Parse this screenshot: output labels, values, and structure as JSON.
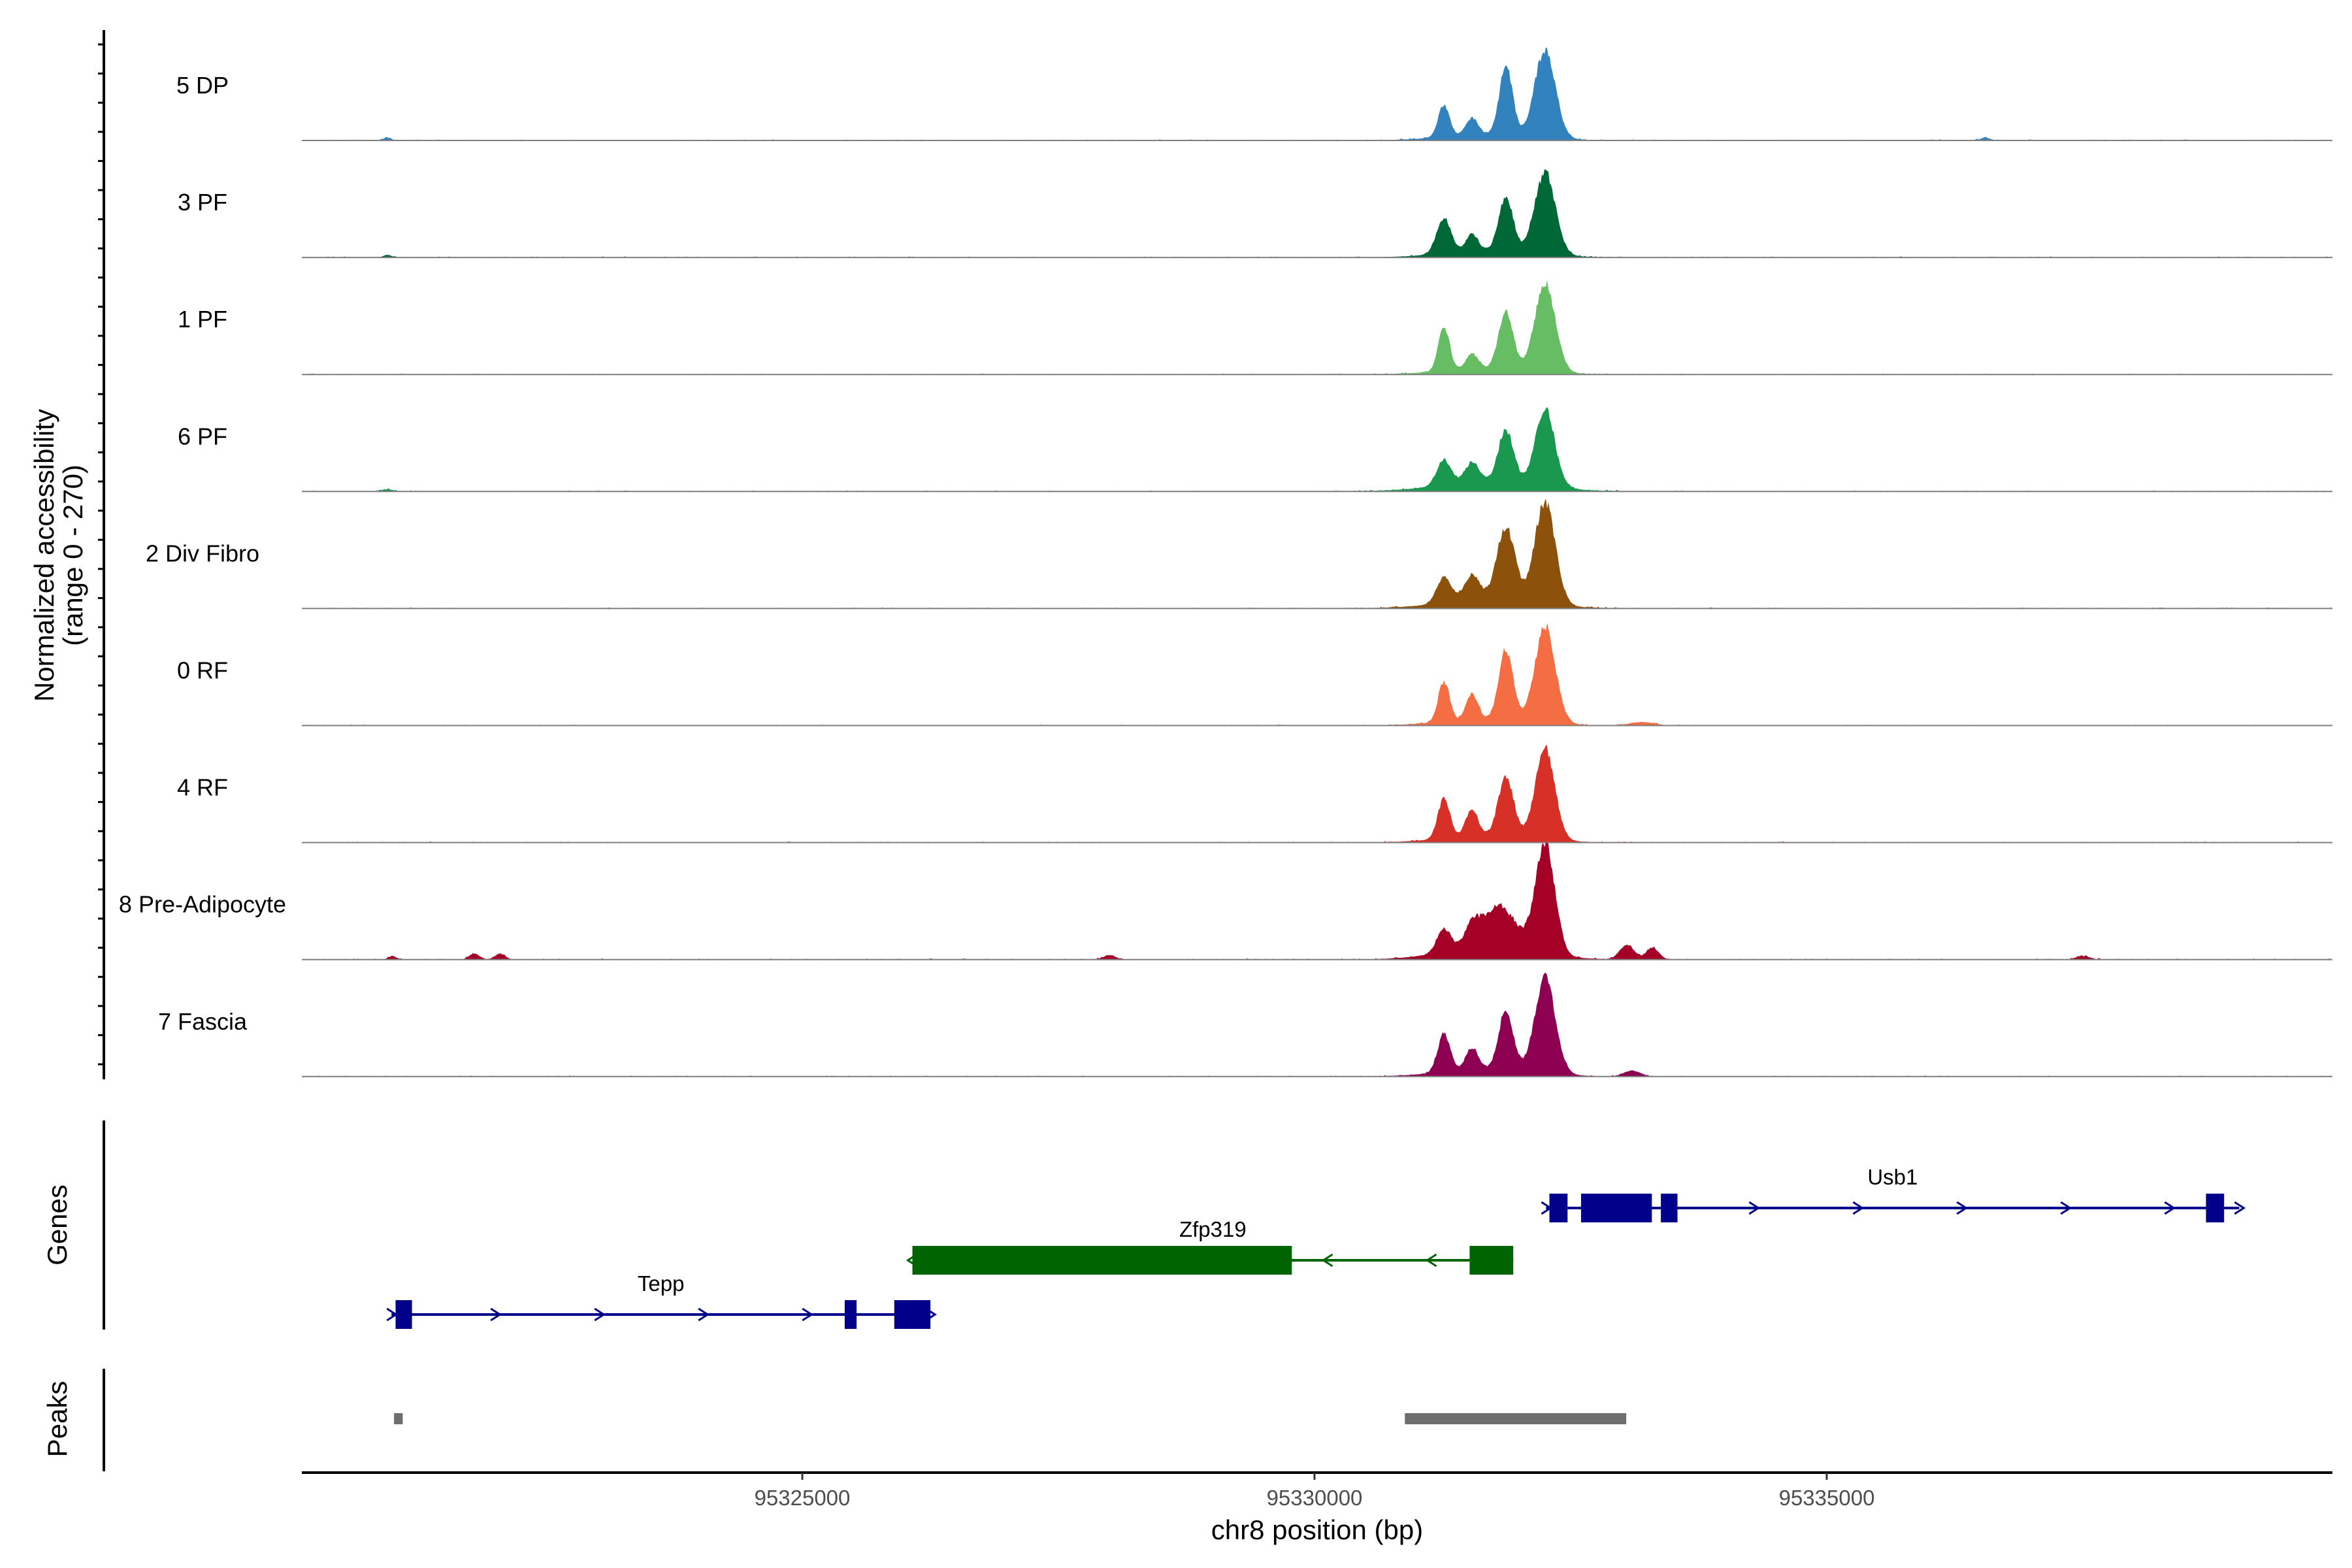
{
  "chart_data": {
    "type": "area",
    "title": "",
    "ylabel_line1": "Normalized accessibility",
    "ylabel_line2": "(range 0 - 270)",
    "ylim": [
      0,
      270
    ],
    "xlabel": "chr8 position (bp)",
    "xlim": [
      95320115,
      95339936
    ],
    "xticks": [
      95325000,
      95330000,
      95335000
    ],
    "xtick_labels": [
      "95325000",
      "95330000",
      "95335000"
    ],
    "tracks": [
      {
        "name": "5 DP",
        "color": "#3182bd",
        "peaks": [
          [
            95331263,
            75,
            55
          ],
          [
            95331537,
            40,
            60
          ],
          [
            95331869,
            160,
            65
          ],
          [
            95332251,
            205,
            100
          ],
          [
            95331716,
            14,
            450
          ],
          [
            95320950,
            6,
            40
          ],
          [
            95336550,
            6,
            50
          ]
        ]
      },
      {
        "name": "3 PF",
        "color": "#006837",
        "peaks": [
          [
            95331263,
            82,
            70
          ],
          [
            95331537,
            40,
            60
          ],
          [
            95331869,
            128,
            70
          ],
          [
            95332251,
            192,
            100
          ],
          [
            95331716,
            16,
            450
          ],
          [
            95320950,
            6,
            40
          ]
        ]
      },
      {
        "name": "1 PF",
        "color": "#66bd63",
        "peaks": [
          [
            95331263,
            104,
            55
          ],
          [
            95331537,
            36,
            60
          ],
          [
            95331869,
            136,
            70
          ],
          [
            95332251,
            205,
            100
          ],
          [
            95331716,
            14,
            450
          ]
        ]
      },
      {
        "name": "6 PF",
        "color": "#1a9850",
        "peaks": [
          [
            95331263,
            60,
            70
          ],
          [
            95331537,
            48,
            70
          ],
          [
            95331869,
            124,
            75
          ],
          [
            95332251,
            180,
            95
          ],
          [
            95331716,
            22,
            500
          ],
          [
            95320950,
            5,
            60
          ]
        ]
      },
      {
        "name": "2 Div Fibro",
        "color": "#8c510a",
        "peaks": [
          [
            95331263,
            62,
            70
          ],
          [
            95331537,
            60,
            80
          ],
          [
            95331869,
            172,
            90
          ],
          [
            95332251,
            240,
            100
          ],
          [
            95331716,
            18,
            500
          ]
        ]
      },
      {
        "name": "0 RF",
        "color": "#f46d43",
        "peaks": [
          [
            95331263,
            95,
            55
          ],
          [
            95331537,
            60,
            60
          ],
          [
            95331869,
            164,
            70
          ],
          [
            95332251,
            222,
            100
          ],
          [
            95331716,
            14,
            450
          ],
          [
            95333200,
            8,
            120
          ]
        ]
      },
      {
        "name": "4 RF",
        "color": "#d73027",
        "peaks": [
          [
            95331263,
            92,
            60
          ],
          [
            95331537,
            62,
            60
          ],
          [
            95331869,
            140,
            75
          ],
          [
            95332251,
            212,
            95
          ],
          [
            95331716,
            16,
            450
          ]
        ]
      },
      {
        "name": "8 Pre-Adipocyte",
        "color": "#a50026",
        "peaks": [
          [
            95331263,
            55,
            70
          ],
          [
            95331537,
            45,
            70
          ],
          [
            95331800,
            100,
            160
          ],
          [
            95332251,
            262,
            95
          ],
          [
            95331716,
            28,
            450
          ],
          [
            95333050,
            34,
            70
          ],
          [
            95333300,
            28,
            60
          ],
          [
            95321000,
            8,
            40
          ],
          [
            95321800,
            14,
            50
          ],
          [
            95322050,
            14,
            50
          ],
          [
            95328000,
            10,
            60
          ],
          [
            95337500,
            8,
            70
          ]
        ]
      },
      {
        "name": "7 Fascia",
        "color": "#8e0152",
        "peaks": [
          [
            95331263,
            90,
            60
          ],
          [
            95331537,
            52,
            60
          ],
          [
            95331869,
            140,
            70
          ],
          [
            95332251,
            220,
            100
          ],
          [
            95331716,
            18,
            450
          ],
          [
            95333100,
            14,
            80
          ]
        ]
      }
    ],
    "genes_label": "Genes",
    "genes": [
      {
        "name": "Usb1",
        "strand": "+",
        "color": "#00008b",
        "start": 95332260,
        "end": 95339026,
        "row": 0,
        "exons": [
          [
            95332293,
            95332470
          ],
          [
            95332602,
            95333293
          ],
          [
            95333381,
            95333543
          ],
          [
            95338702,
            95338879
          ]
        ]
      },
      {
        "name": "Zfp319",
        "strand": "-",
        "color": "#006400",
        "start": 95326075,
        "end": 95331940,
        "row": 1,
        "exons": [
          [
            95326075,
            95329779
          ],
          [
            95331514,
            95331940
          ]
        ]
      },
      {
        "name": "Tepp",
        "strand": "+",
        "color": "#00008b",
        "start": 95320990,
        "end": 95326251,
        "row": 2,
        "exons": [
          [
            95321030,
            95321190
          ],
          [
            95325414,
            95325530
          ],
          [
            95325898,
            95326251
          ]
        ]
      }
    ],
    "peaks_label": "Peaks",
    "peak_regions": [
      [
        95321015,
        95321100
      ],
      [
        95330882,
        95333043
      ]
    ],
    "peak_color": "#6e6e6e"
  }
}
